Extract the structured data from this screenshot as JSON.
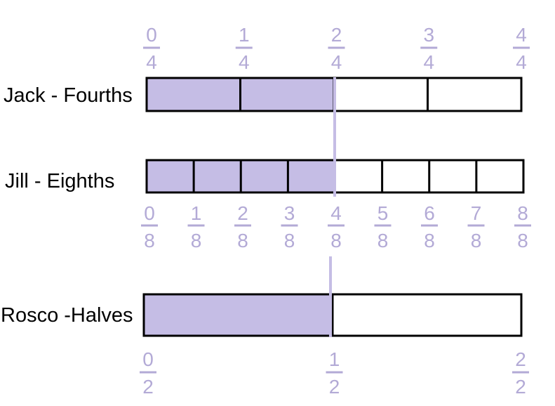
{
  "colors": {
    "shade": "#c5bde5",
    "fraction_text": "#b3aad6",
    "divider_line": "#c5bde5",
    "outline": "#000000"
  },
  "rows": [
    {
      "label": "Jack - Fourths",
      "parts": 4,
      "shaded_parts": 2,
      "fraction_labels": [
        {
          "num": "0",
          "den": "4"
        },
        {
          "num": "1",
          "den": "4"
        },
        {
          "num": "2",
          "den": "4"
        },
        {
          "num": "3",
          "den": "4"
        },
        {
          "num": "4",
          "den": "4"
        }
      ]
    },
    {
      "label": "Jill - Eighths",
      "parts": 8,
      "shaded_parts": 4,
      "fraction_labels": [
        {
          "num": "0",
          "den": "8"
        },
        {
          "num": "1",
          "den": "8"
        },
        {
          "num": "2",
          "den": "8"
        },
        {
          "num": "3",
          "den": "8"
        },
        {
          "num": "4",
          "den": "8"
        },
        {
          "num": "5",
          "den": "8"
        },
        {
          "num": "6",
          "den": "8"
        },
        {
          "num": "7",
          "den": "8"
        },
        {
          "num": "8",
          "den": "8"
        }
      ]
    },
    {
      "label": "Rosco -Halves",
      "parts": 2,
      "shaded_parts": 1,
      "fraction_labels": [
        {
          "num": "0",
          "den": "2"
        },
        {
          "num": "1",
          "den": "2"
        },
        {
          "num": "2",
          "den": "2"
        }
      ]
    }
  ]
}
